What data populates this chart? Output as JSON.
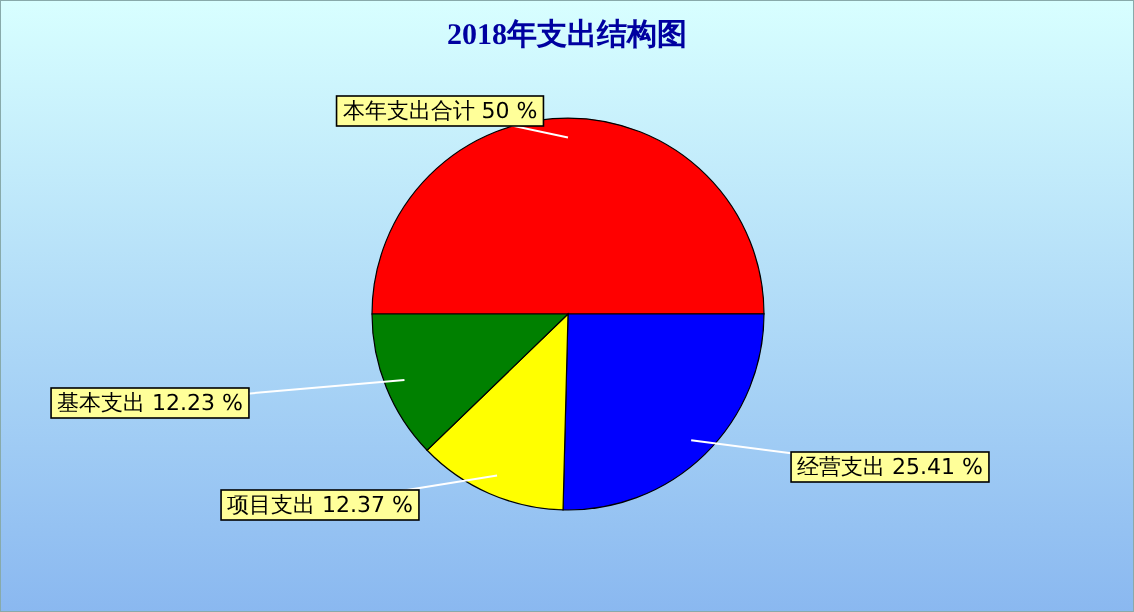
{
  "chart_data": {
    "type": "pie",
    "title": "2018年支出结构图",
    "categories": [
      "本年支出合计",
      "经营支出",
      "项目支出",
      "基本支出"
    ],
    "values": [
      50,
      25.41,
      12.37,
      12.23
    ],
    "colors": [
      "#ff0000",
      "#0000ff",
      "#ffff00",
      "#008000"
    ],
    "value_labels": [
      "50 %",
      "25.41 %",
      "12.37 %",
      "12.23 %"
    ]
  }
}
